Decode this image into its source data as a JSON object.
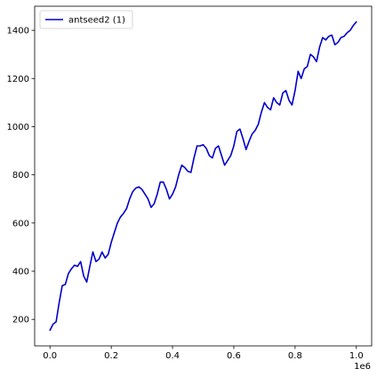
{
  "chart_data": {
    "type": "line",
    "title": "",
    "xlabel": "",
    "ylabel": "",
    "x_offset_label": "1e6",
    "xlim": [
      -0.05,
      1.05
    ],
    "ylim": [
      90,
      1500
    ],
    "x_ticks": [
      0.0,
      0.2,
      0.4,
      0.6,
      0.8,
      1.0
    ],
    "x_tick_labels": [
      "0.0",
      "0.2",
      "0.4",
      "0.6",
      "0.8",
      "1.0"
    ],
    "y_ticks": [
      200,
      400,
      600,
      800,
      1000,
      1200,
      1400
    ],
    "y_tick_labels": [
      "200",
      "400",
      "600",
      "800",
      "1000",
      "1200",
      "1400"
    ],
    "grid": false,
    "legend_position": "top-left",
    "series": [
      {
        "name": "antseed2 (1)",
        "color": "#0000cc",
        "x": [
          0.0,
          0.01,
          0.02,
          0.03,
          0.04,
          0.05,
          0.06,
          0.07,
          0.08,
          0.09,
          0.1,
          0.11,
          0.12,
          0.13,
          0.14,
          0.15,
          0.16,
          0.17,
          0.18,
          0.19,
          0.2,
          0.21,
          0.22,
          0.23,
          0.24,
          0.25,
          0.26,
          0.27,
          0.28,
          0.29,
          0.3,
          0.31,
          0.32,
          0.33,
          0.34,
          0.35,
          0.36,
          0.37,
          0.38,
          0.39,
          0.4,
          0.41,
          0.42,
          0.43,
          0.44,
          0.45,
          0.46,
          0.47,
          0.48,
          0.49,
          0.5,
          0.51,
          0.52,
          0.53,
          0.54,
          0.55,
          0.56,
          0.57,
          0.58,
          0.59,
          0.6,
          0.61,
          0.62,
          0.63,
          0.64,
          0.65,
          0.66,
          0.67,
          0.68,
          0.69,
          0.7,
          0.71,
          0.72,
          0.73,
          0.74,
          0.75,
          0.76,
          0.77,
          0.78,
          0.79,
          0.8,
          0.81,
          0.82,
          0.83,
          0.84,
          0.85,
          0.86,
          0.87,
          0.88,
          0.89,
          0.9,
          0.91,
          0.92,
          0.93,
          0.94,
          0.95,
          0.96,
          0.97,
          0.98,
          0.99,
          1.0
        ],
        "values": [
          155,
          180,
          190,
          270,
          340,
          345,
          390,
          410,
          425,
          420,
          440,
          380,
          355,
          420,
          480,
          440,
          450,
          480,
          455,
          470,
          520,
          560,
          600,
          625,
          640,
          660,
          700,
          730,
          745,
          750,
          740,
          720,
          700,
          665,
          680,
          720,
          770,
          770,
          740,
          700,
          720,
          750,
          800,
          840,
          830,
          815,
          810,
          870,
          920,
          920,
          925,
          910,
          880,
          870,
          910,
          920,
          880,
          840,
          860,
          880,
          920,
          980,
          990,
          950,
          905,
          940,
          970,
          985,
          1010,
          1060,
          1100,
          1080,
          1070,
          1120,
          1100,
          1090,
          1140,
          1150,
          1110,
          1090,
          1150,
          1230,
          1200,
          1240,
          1250,
          1300,
          1290,
          1270,
          1330,
          1370,
          1360,
          1375,
          1380,
          1340,
          1350,
          1370,
          1375,
          1390,
          1400,
          1420,
          1435
        ]
      }
    ]
  }
}
